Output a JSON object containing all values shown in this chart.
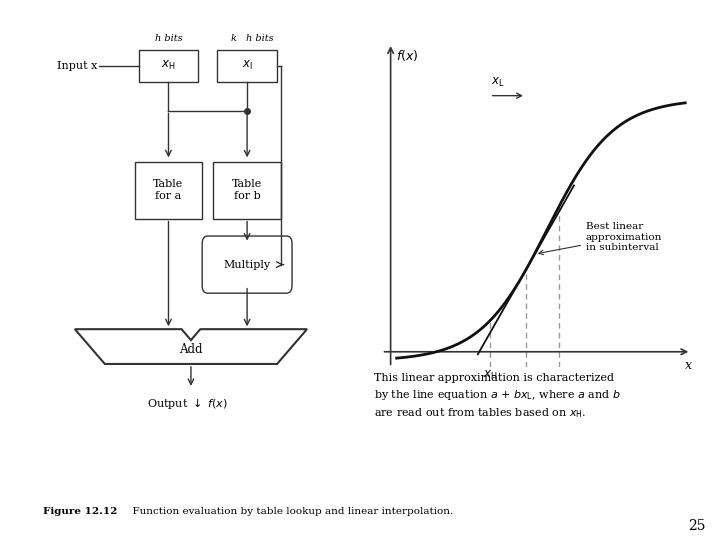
{
  "bg_color": "#ffffff",
  "fig_caption_bold": "Figure 12.12",
  "fig_caption_rest": "  Function evaluation by table lookup and linear interpolation.",
  "page_number": "25",
  "lw": 1.0,
  "box_ec": "#333333",
  "arrow_color": "#333333"
}
